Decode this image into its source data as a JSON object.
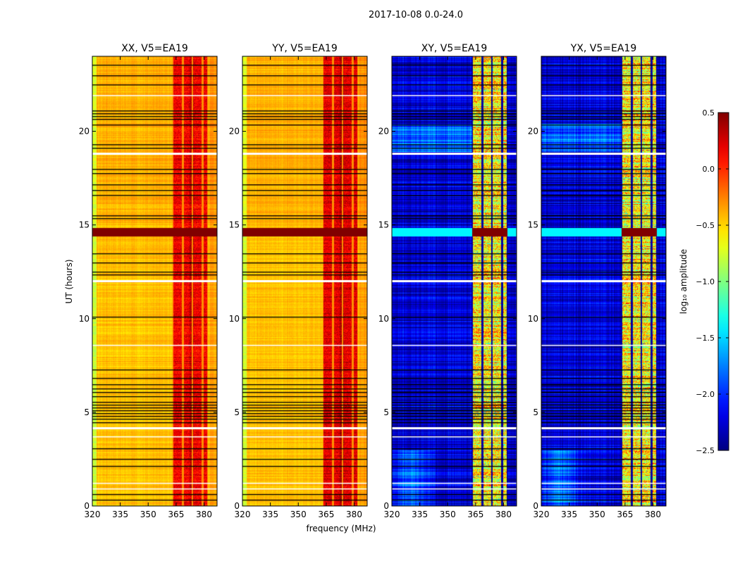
{
  "chart_data": {
    "type": "heatmap",
    "title": "2017-10-08 0.0-24.0",
    "xlabel": "frequency (MHz)",
    "ylabel": "UT (hours)",
    "xlim": [
      320,
      387
    ],
    "ylim": [
      0,
      24
    ],
    "xticks": [
      "320",
      "335",
      "350",
      "365",
      "380"
    ],
    "xtick_values": [
      320,
      335,
      350,
      365,
      380
    ],
    "yticks": [
      "0",
      "5",
      "10",
      "15",
      "20"
    ],
    "ytick_values": [
      0,
      5,
      10,
      15,
      20
    ],
    "rfi_band_mhz": [
      363,
      382
    ],
    "subband_edges_mhz": [
      363,
      368.5,
      373.5,
      379,
      382
    ],
    "flagged_black_rows_ut": [
      23.56,
      23.0,
      22.48,
      21.09,
      20.94,
      20.79,
      20.64,
      20.37,
      19.29,
      19.1,
      18.0,
      17.75,
      17.15,
      16.85,
      16.6,
      15.53,
      15.35,
      13.5,
      13.0,
      12.5,
      12.35,
      10.1,
      7.28,
      6.83,
      6.5,
      6.27,
      6.08,
      5.85,
      5.55,
      5.4,
      5.25,
      5.1,
      4.95,
      4.8,
      4.65,
      4.47,
      3.08,
      2.51,
      2.14,
      0.64,
      0.34
    ],
    "flagged_white_rows_ut": [
      21.95,
      18.87,
      12.05,
      8.6,
      4.2,
      3.7,
      1.24,
      0.94
    ],
    "saturated_rows_ut": [
      14.4,
      14.85
    ],
    "panels": [
      {
        "name": "XX",
        "title": "XX, V5=EA19",
        "base_log_amp": -0.45,
        "band_log_amp": 0.15
      },
      {
        "name": "YY",
        "title": "YY, V5=EA19",
        "base_log_amp": -0.45,
        "band_log_amp": 0.2
      },
      {
        "name": "XY",
        "title": "XY, V5=EA19",
        "base_log_amp": -2.25,
        "band_log_amp": -0.6
      },
      {
        "name": "YX",
        "title": "YX, V5=EA19",
        "base_log_amp": -2.25,
        "band_log_amp": -0.6
      }
    ],
    "colorbar": {
      "label": "log₁₀ amplitude",
      "colormap": "jet",
      "range": [
        -2.5,
        0.5
      ],
      "ticks": [
        "0.5",
        "0.0",
        "−0.5",
        "−1.0",
        "−1.5",
        "−2.0",
        "−2.5"
      ],
      "tick_values": [
        0.5,
        0.0,
        -0.5,
        -1.0,
        -1.5,
        -2.0,
        -2.5
      ]
    }
  }
}
